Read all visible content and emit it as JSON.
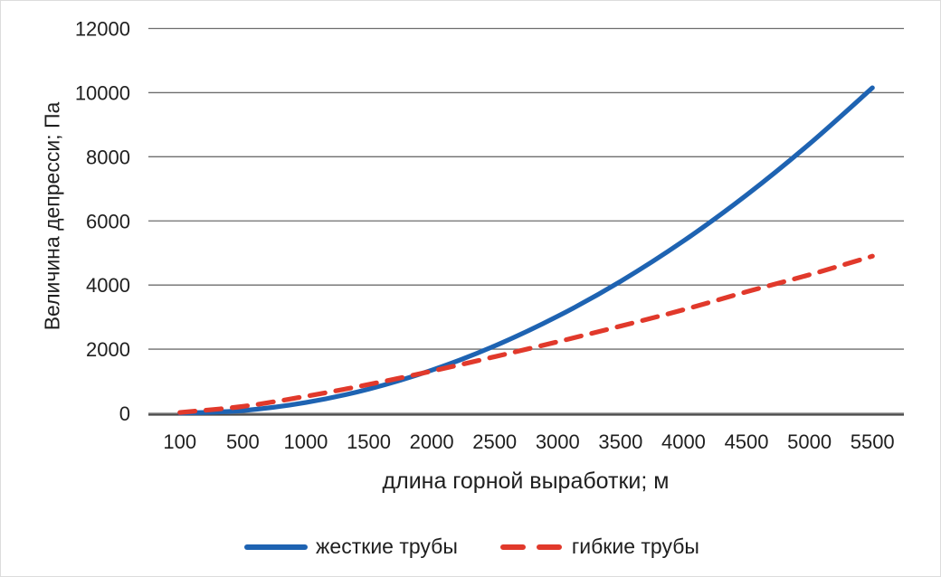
{
  "chart_data": {
    "type": "line",
    "title": "",
    "xlabel": "длина горной выработки; м",
    "ylabel": "Величина депресси; Па",
    "x_axis_type": "categorical",
    "categories": [
      100,
      500,
      1000,
      1500,
      2000,
      2500,
      3000,
      3500,
      4000,
      4500,
      5000,
      5500
    ],
    "y_ticks": [
      0,
      2000,
      4000,
      6000,
      8000,
      10000,
      12000
    ],
    "ylim": [
      0,
      12000
    ],
    "grid": "horizontal",
    "legend_position": "bottom",
    "series": [
      {
        "name": "жесткие трубы",
        "style": "solid",
        "color": "#1e63b2",
        "values": [
          5,
          85,
          335,
          755,
          1345,
          2100,
          3025,
          4115,
          5375,
          6805,
          8400,
          10150
        ]
      },
      {
        "name": "гибкие трубы",
        "style": "dashed",
        "color": "#e1392b",
        "values": [
          25,
          215,
          530,
          900,
          1315,
          1765,
          2230,
          2720,
          3230,
          3790,
          4320,
          4900
        ]
      }
    ],
    "colors": {
      "gridline": "#6e6e6e",
      "axis": "#4a4a4a",
      "text": "#1f1f1f"
    }
  }
}
